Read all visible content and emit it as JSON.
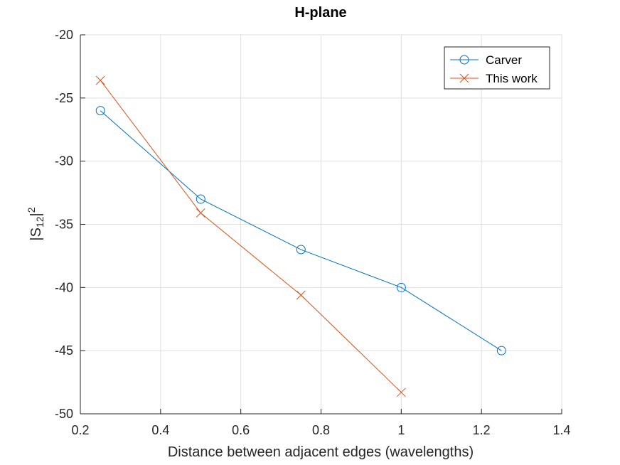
{
  "chart_data": {
    "type": "line",
    "title": "H-plane",
    "xlabel": "Distance between adjacent edges (wavelengths)",
    "ylabel": "|S12|2",
    "ylabel_parts": {
      "base": "|S",
      "sub": "12",
      "close": "|",
      "sup": "2"
    },
    "xlim": [
      0.2,
      1.4
    ],
    "ylim": [
      -50,
      -20
    ],
    "xticks": [
      0.2,
      0.4,
      0.6,
      0.8,
      1,
      1.2,
      1.4
    ],
    "yticks": [
      -50,
      -45,
      -40,
      -35,
      -30,
      -25,
      -20
    ],
    "grid": true,
    "legend_position": "top-right",
    "series": [
      {
        "name": "Carver",
        "color": "#0072BD",
        "marker": "circle",
        "x": [
          0.25,
          0.5,
          0.75,
          1.0,
          1.25
        ],
        "y": [
          -26,
          -33,
          -37,
          -40,
          -45
        ]
      },
      {
        "name": "This work",
        "color": "#D95319",
        "marker": "x",
        "x": [
          0.25,
          0.5,
          0.75,
          1.0
        ],
        "y": [
          -23.6,
          -34.1,
          -40.6,
          -48.3
        ]
      }
    ]
  }
}
